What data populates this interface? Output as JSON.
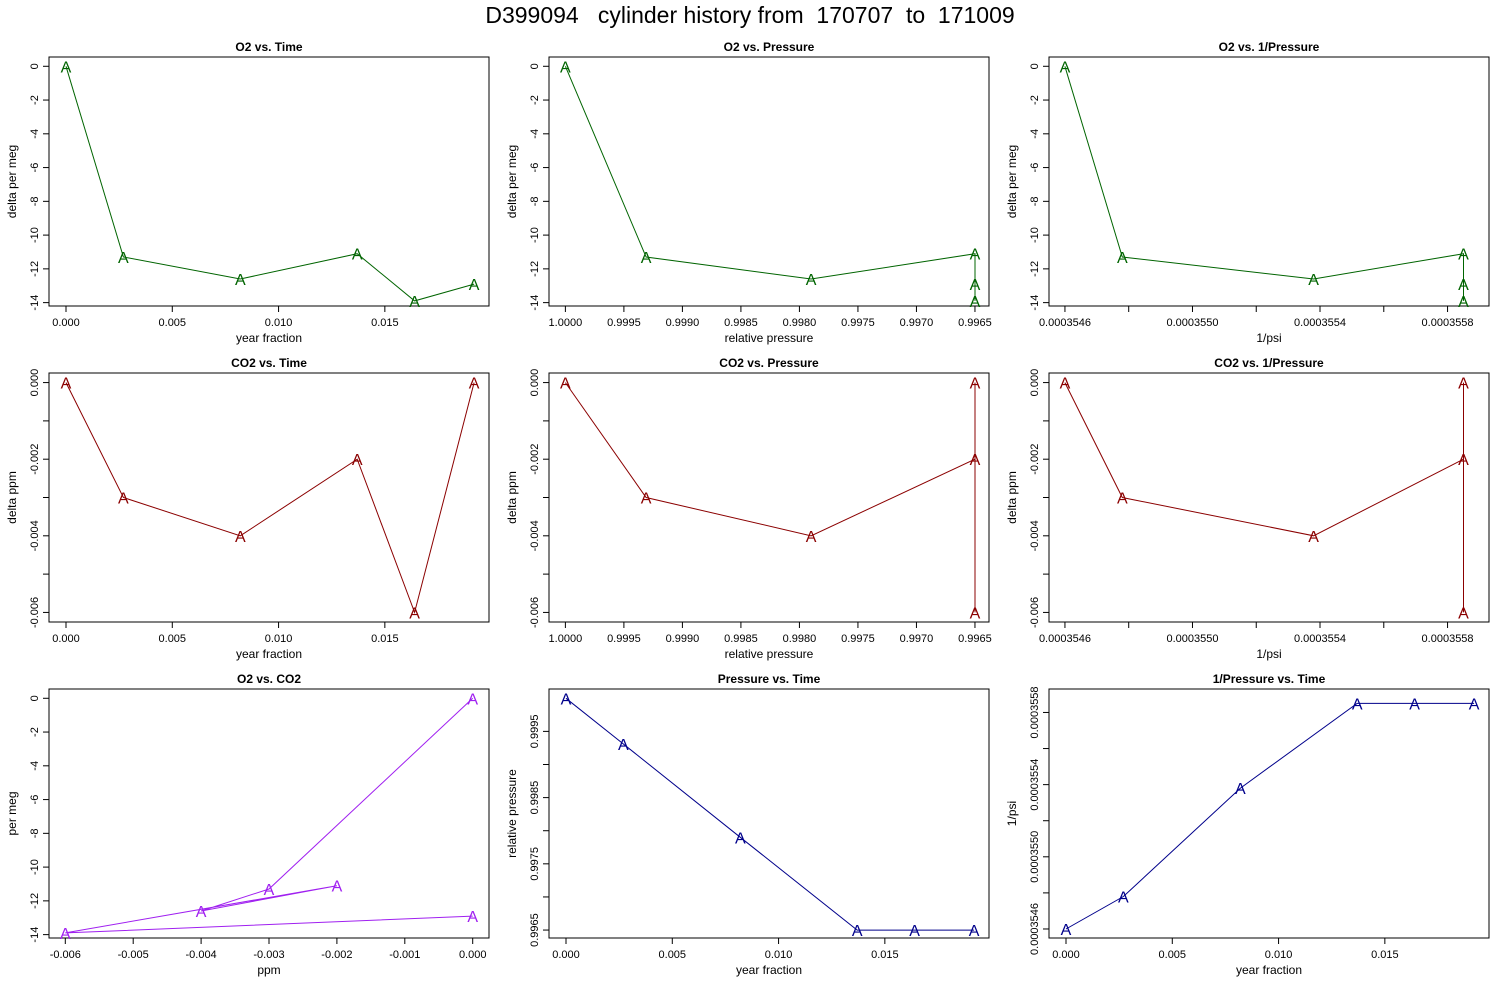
{
  "title": "D399094   cylinder history from  170707  to  171009",
  "colors": {
    "o2": "#006400",
    "co2": "#8b0000",
    "o2co2": "#a020f0",
    "pressure": "#00008b"
  },
  "chart_data": [
    {
      "type": "line",
      "title": "O2 vs. Time",
      "xlabel": "year fraction",
      "ylabel": "delta per meg",
      "color": "o2",
      "xlim": [
        -0.0008,
        0.0199
      ],
      "ylim": [
        -14.2,
        0.55
      ],
      "xticks": [
        {
          "v": 0,
          "l": "0.000"
        },
        {
          "v": 0.005,
          "l": "0.005"
        },
        {
          "v": 0.01,
          "l": "0.010"
        },
        {
          "v": 0.015,
          "l": "0.015"
        }
      ],
      "yticks": [
        {
          "v": 0,
          "l": "0"
        },
        {
          "v": -2,
          "l": "-2"
        },
        {
          "v": -4,
          "l": "-4"
        },
        {
          "v": -6,
          "l": "-6"
        },
        {
          "v": -8,
          "l": "-8"
        },
        {
          "v": -10,
          "l": "-10"
        },
        {
          "v": -12,
          "l": "-12"
        },
        {
          "v": -14,
          "l": "-14"
        }
      ],
      "marker": "A",
      "x": [
        0.0,
        0.0027,
        0.0082,
        0.0137,
        0.0164,
        0.0192
      ],
      "y": [
        0.0,
        -11.3,
        -12.6,
        -11.1,
        -13.9,
        -12.9
      ]
    },
    {
      "type": "line",
      "title": "O2 vs. Pressure",
      "xlabel": "relative pressure",
      "ylabel": "delta per meg",
      "color": "o2",
      "xlim": [
        1.00014,
        0.99638
      ],
      "ylim": [
        -14.2,
        0.55
      ],
      "xticks": [
        {
          "v": 1.0,
          "l": "1.0000"
        },
        {
          "v": 0.9995,
          "l": "0.9995"
        },
        {
          "v": 0.999,
          "l": "0.9990"
        },
        {
          "v": 0.9985,
          "l": "0.9985"
        },
        {
          "v": 0.998,
          "l": "0.9980"
        },
        {
          "v": 0.9975,
          "l": "0.9975"
        },
        {
          "v": 0.997,
          "l": "0.9970"
        },
        {
          "v": 0.9965,
          "l": "0.9965"
        }
      ],
      "yticks": [
        {
          "v": 0,
          "l": "0"
        },
        {
          "v": -2,
          "l": "-2"
        },
        {
          "v": -4,
          "l": "-4"
        },
        {
          "v": -6,
          "l": "-6"
        },
        {
          "v": -8,
          "l": "-8"
        },
        {
          "v": -10,
          "l": "-10"
        },
        {
          "v": -12,
          "l": "-12"
        },
        {
          "v": -14,
          "l": "-14"
        }
      ],
      "marker": "A",
      "x": [
        1.0,
        0.99931,
        0.9979,
        0.9965,
        0.9965,
        0.9965
      ],
      "y": [
        0.0,
        -11.3,
        -12.6,
        -11.1,
        -13.9,
        -12.9
      ]
    },
    {
      "type": "line",
      "title": "O2 vs. 1/Pressure",
      "xlabel": "1/psi",
      "ylabel": "delta per meg",
      "color": "o2",
      "xlim": [
        0.00035455,
        0.00035593
      ],
      "ylim": [
        -14.2,
        0.55
      ],
      "xticks": [
        {
          "v": 0.0003546,
          "l": "0.0003546"
        },
        {
          "v": 0.0003548,
          "l": ""
        },
        {
          "v": 0.000355,
          "l": "0.0003550"
        },
        {
          "v": 0.0003552,
          "l": ""
        },
        {
          "v": 0.0003554,
          "l": "0.0003554"
        },
        {
          "v": 0.0003556,
          "l": ""
        },
        {
          "v": 0.0003558,
          "l": "0.0003558"
        }
      ],
      "yticks": [
        {
          "v": 0,
          "l": "0"
        },
        {
          "v": -2,
          "l": "-2"
        },
        {
          "v": -4,
          "l": "-4"
        },
        {
          "v": -6,
          "l": "-6"
        },
        {
          "v": -8,
          "l": "-8"
        },
        {
          "v": -10,
          "l": "-10"
        },
        {
          "v": -12,
          "l": "-12"
        },
        {
          "v": -14,
          "l": "-14"
        }
      ],
      "marker": "A",
      "x": [
        0.0003546,
        0.00035478,
        0.00035538,
        0.00035585,
        0.00035585,
        0.00035585
      ],
      "y": [
        0.0,
        -11.3,
        -12.6,
        -11.1,
        -13.9,
        -12.9
      ]
    },
    {
      "type": "line",
      "title": "CO2 vs. Time",
      "xlabel": "year fraction",
      "ylabel": "delta ppm",
      "color": "co2",
      "xlim": [
        -0.0008,
        0.0199
      ],
      "ylim": [
        -0.00625,
        0.00025
      ],
      "xticks": [
        {
          "v": 0,
          "l": "0.000"
        },
        {
          "v": 0.005,
          "l": "0.005"
        },
        {
          "v": 0.01,
          "l": "0.010"
        },
        {
          "v": 0.015,
          "l": "0.015"
        }
      ],
      "yticks": [
        {
          "v": 0,
          "l": "0.000"
        },
        {
          "v": -0.001,
          "l": ""
        },
        {
          "v": -0.002,
          "l": "-0.002"
        },
        {
          "v": -0.003,
          "l": ""
        },
        {
          "v": -0.004,
          "l": "-0.004"
        },
        {
          "v": -0.005,
          "l": ""
        },
        {
          "v": -0.006,
          "l": "-0.006"
        }
      ],
      "marker": "A",
      "x": [
        0.0,
        0.0027,
        0.0082,
        0.0137,
        0.0164,
        0.0192
      ],
      "y": [
        0.0,
        -0.003,
        -0.004,
        -0.002,
        -0.006,
        0.0
      ]
    },
    {
      "type": "line",
      "title": "CO2 vs. Pressure",
      "xlabel": "relative pressure",
      "ylabel": "delta ppm",
      "color": "co2",
      "xlim": [
        1.00014,
        0.99638
      ],
      "ylim": [
        -0.00625,
        0.00025
      ],
      "xticks": [
        {
          "v": 1.0,
          "l": "1.0000"
        },
        {
          "v": 0.9995,
          "l": "0.9995"
        },
        {
          "v": 0.999,
          "l": "0.9990"
        },
        {
          "v": 0.9985,
          "l": "0.9985"
        },
        {
          "v": 0.998,
          "l": "0.9980"
        },
        {
          "v": 0.9975,
          "l": "0.9975"
        },
        {
          "v": 0.997,
          "l": "0.9970"
        },
        {
          "v": 0.9965,
          "l": "0.9965"
        }
      ],
      "yticks": [
        {
          "v": 0,
          "l": "0.000"
        },
        {
          "v": -0.001,
          "l": ""
        },
        {
          "v": -0.002,
          "l": "-0.002"
        },
        {
          "v": -0.003,
          "l": ""
        },
        {
          "v": -0.004,
          "l": "-0.004"
        },
        {
          "v": -0.005,
          "l": ""
        },
        {
          "v": -0.006,
          "l": "-0.006"
        }
      ],
      "marker": "A",
      "x": [
        1.0,
        0.99931,
        0.9979,
        0.9965,
        0.9965,
        0.9965
      ],
      "y": [
        0.0,
        -0.003,
        -0.004,
        -0.002,
        -0.006,
        0.0
      ]
    },
    {
      "type": "line",
      "title": "CO2 vs. 1/Pressure",
      "xlabel": "1/psi",
      "ylabel": "delta ppm",
      "color": "co2",
      "xlim": [
        0.00035455,
        0.00035593
      ],
      "ylim": [
        -0.00625,
        0.00025
      ],
      "xticks": [
        {
          "v": 0.0003546,
          "l": "0.0003546"
        },
        {
          "v": 0.0003548,
          "l": ""
        },
        {
          "v": 0.000355,
          "l": "0.0003550"
        },
        {
          "v": 0.0003552,
          "l": ""
        },
        {
          "v": 0.0003554,
          "l": "0.0003554"
        },
        {
          "v": 0.0003556,
          "l": ""
        },
        {
          "v": 0.0003558,
          "l": "0.0003558"
        }
      ],
      "yticks": [
        {
          "v": 0,
          "l": "0.000"
        },
        {
          "v": -0.001,
          "l": ""
        },
        {
          "v": -0.002,
          "l": "-0.002"
        },
        {
          "v": -0.003,
          "l": ""
        },
        {
          "v": -0.004,
          "l": "-0.004"
        },
        {
          "v": -0.005,
          "l": ""
        },
        {
          "v": -0.006,
          "l": "-0.006"
        }
      ],
      "marker": "A",
      "x": [
        0.0003546,
        0.00035478,
        0.00035538,
        0.00035585,
        0.00035585,
        0.00035585
      ],
      "y": [
        0.0,
        -0.003,
        -0.004,
        -0.002,
        -0.006,
        0.0
      ]
    },
    {
      "type": "line",
      "title": "O2 vs. CO2",
      "xlabel": "ppm",
      "ylabel": "per meg",
      "color": "o2co2",
      "xlim": [
        -0.00624,
        0.00024
      ],
      "ylim": [
        -14.2,
        0.55
      ],
      "xticks": [
        {
          "v": -0.006,
          "l": "-0.006"
        },
        {
          "v": -0.005,
          "l": "-0.005"
        },
        {
          "v": -0.004,
          "l": "-0.004"
        },
        {
          "v": -0.003,
          "l": "-0.003"
        },
        {
          "v": -0.002,
          "l": "-0.002"
        },
        {
          "v": -0.001,
          "l": "-0.001"
        },
        {
          "v": 0,
          "l": "0.000"
        }
      ],
      "yticks": [
        {
          "v": 0,
          "l": "0"
        },
        {
          "v": -2,
          "l": "-2"
        },
        {
          "v": -4,
          "l": "-4"
        },
        {
          "v": -6,
          "l": "-6"
        },
        {
          "v": -8,
          "l": "-8"
        },
        {
          "v": -10,
          "l": "-10"
        },
        {
          "v": -12,
          "l": "-12"
        },
        {
          "v": -14,
          "l": "-14"
        }
      ],
      "marker": "A",
      "x": [
        0.0,
        -0.003,
        -0.004,
        -0.002,
        -0.006,
        0.0
      ],
      "y": [
        0.0,
        -11.3,
        -12.6,
        -11.1,
        -13.9,
        -12.9
      ]
    },
    {
      "type": "line",
      "title": "Pressure vs. Time",
      "xlabel": "year fraction",
      "ylabel": "relative pressure",
      "color": "pressure",
      "xlim": [
        -0.0008,
        0.0199
      ],
      "ylim": [
        0.99638,
        1.00014
      ],
      "xticks": [
        {
          "v": 0,
          "l": "0.000"
        },
        {
          "v": 0.005,
          "l": "0.005"
        },
        {
          "v": 0.01,
          "l": "0.010"
        },
        {
          "v": 0.015,
          "l": "0.015"
        }
      ],
      "yticks": [
        {
          "v": 0.9965,
          "l": "0.9965"
        },
        {
          "v": 0.997,
          "l": ""
        },
        {
          "v": 0.9975,
          "l": "0.9975"
        },
        {
          "v": 0.998,
          "l": ""
        },
        {
          "v": 0.9985,
          "l": "0.9985"
        },
        {
          "v": 0.999,
          "l": ""
        },
        {
          "v": 0.9995,
          "l": "0.9995"
        }
      ],
      "marker": "A",
      "x": [
        0.0,
        0.0027,
        0.0082,
        0.0137,
        0.0164,
        0.0192
      ],
      "y": [
        1.0,
        0.99931,
        0.9979,
        0.9965,
        0.9965,
        0.9965
      ]
    },
    {
      "type": "line",
      "title": "1/Pressure vs. Time",
      "xlabel": "year fraction",
      "ylabel": "1/psi",
      "color": "pressure",
      "xlim": [
        -0.0008,
        0.0199
      ],
      "ylim": [
        0.00035455,
        0.00035593
      ],
      "xticks": [
        {
          "v": 0,
          "l": "0.000"
        },
        {
          "v": 0.005,
          "l": "0.005"
        },
        {
          "v": 0.01,
          "l": "0.010"
        },
        {
          "v": 0.015,
          "l": "0.015"
        }
      ],
      "yticks": [
        {
          "v": 0.0003546,
          "l": "0.0003546"
        },
        {
          "v": 0.0003548,
          "l": ""
        },
        {
          "v": 0.000355,
          "l": "0.0003550"
        },
        {
          "v": 0.0003552,
          "l": ""
        },
        {
          "v": 0.0003554,
          "l": "0.0003554"
        },
        {
          "v": 0.0003556,
          "l": ""
        },
        {
          "v": 0.0003558,
          "l": "0.0003558"
        }
      ],
      "marker": "A",
      "x": [
        0.0,
        0.0027,
        0.0082,
        0.0137,
        0.0164,
        0.0192
      ],
      "y": [
        0.0003546,
        0.00035478,
        0.00035538,
        0.00035585,
        0.00035585,
        0.00035585
      ]
    }
  ]
}
